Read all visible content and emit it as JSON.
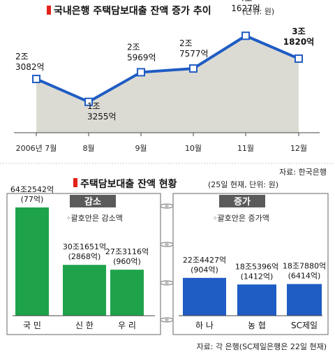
{
  "chart_data": [
    {
      "type": "area",
      "title": "국내은행 주택담보대출 잔액 증가 추이",
      "unit": "(단위: 원)",
      "categories": [
        "2006년 7월",
        "8월",
        "9월",
        "10월",
        "11월",
        "12월"
      ],
      "values": [
        230821,
        132551,
        259691,
        275771,
        416271,
        318201
      ],
      "value_labels": [
        [
          "2조",
          "3082억"
        ],
        [
          "1조",
          "3255억"
        ],
        [
          "2조",
          "5969억"
        ],
        [
          "2조",
          "7577억"
        ],
        [
          "4조",
          "1627억"
        ],
        [
          "3조",
          "1820억"
        ]
      ],
      "ylim": [
        0,
        480000
      ],
      "source": "자료: 한국은행",
      "colors": {
        "line": "#1f5cc4",
        "area": "#dcdbd3",
        "title_mark": "#e2231a"
      }
    },
    {
      "type": "bar",
      "title": "주택담보대출 잔액 현황",
      "unit": "(25일 현재, 단위: 원)",
      "groups": [
        {
          "name": "감소",
          "note": "◦괄호안은 감소액",
          "color": "#1ea34a",
          "categories": [
            "국 민",
            "신 한",
            "우 리"
          ],
          "values": [
            642542,
            301651,
            273116
          ],
          "value_labels": [
            [
              "64조2542억",
              "(77억)"
            ],
            [
              "30조1651억",
              "(2868억)"
            ],
            [
              "27조3116억",
              "(960억)"
            ]
          ]
        },
        {
          "name": "증가",
          "note": "◦괄호안은 증가액",
          "color": "#1f5cc4",
          "categories": [
            "하 나",
            "농 협",
            "SC제일"
          ],
          "values": [
            224427,
            185396,
            187880
          ],
          "value_labels": [
            [
              "22조4427억",
              "(904억)"
            ],
            [
              "18조5396억",
              "(1412억)"
            ],
            [
              "18조7880억",
              "(6414억)"
            ]
          ]
        }
      ],
      "source": "자료: 각 은행(SC제일은행은 22일 현재)"
    }
  ]
}
